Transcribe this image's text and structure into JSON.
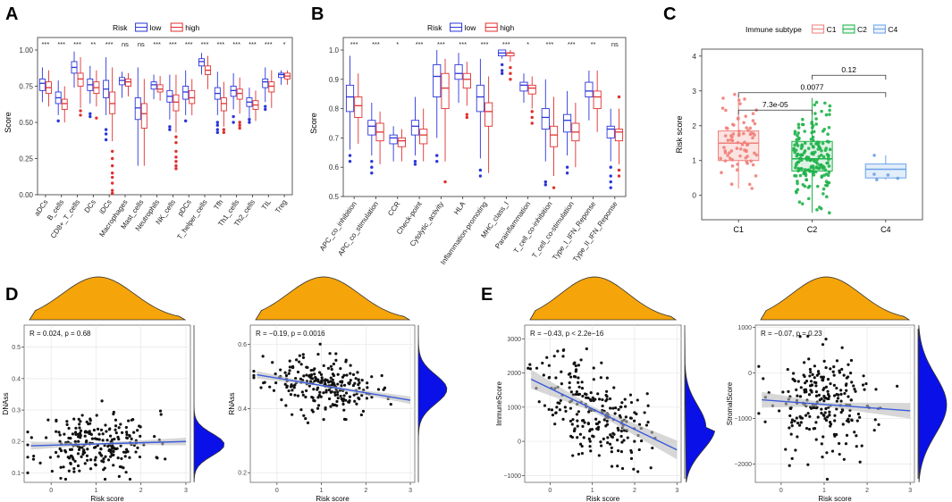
{
  "colors": {
    "low": "#2b35d9",
    "high": "#e0302e",
    "c1": "#f07f7a",
    "c2": "#1fb34a",
    "c4": "#6aa2e6",
    "density": "#f5a40a",
    "density_right": "#0a10e8",
    "fit_line": "#3b5bdb",
    "band": "#bdbdbd"
  },
  "chart_data": [
    {
      "panel": "A",
      "type": "box",
      "legend_title": "Risk",
      "legend": [
        "low",
        "high"
      ],
      "ylabel": "Score",
      "ylim": [
        0,
        1.0
      ],
      "yticks": [
        "0.00",
        "0.25",
        "0.50",
        "0.75",
        "1.00"
      ],
      "categories": [
        "aDCs",
        "B_cells",
        "CD8+_T_cells",
        "DCs",
        "iDCs",
        "Macrophages",
        "Mast_cells",
        "Neutrophils",
        "NK_cells",
        "pDCs",
        "T_helper_cells",
        "Tfh",
        "Th1_cells",
        "Th2_cells",
        "TIL",
        "Treg"
      ],
      "significance": [
        "***",
        "***",
        "***",
        "**",
        "***",
        "ns",
        "ns",
        "***",
        "***",
        "***",
        "***",
        "***",
        "***",
        "***",
        "***",
        "*"
      ],
      "series": [
        {
          "name": "low",
          "stats": [
            [
              0.64,
              0.72,
              0.77,
              0.8,
              0.88
            ],
            [
              0.55,
              0.63,
              0.67,
              0.71,
              0.79
            ],
            [
              0.74,
              0.84,
              0.88,
              0.92,
              0.99
            ],
            [
              0.63,
              0.72,
              0.76,
              0.8,
              0.89
            ],
            [
              0.55,
              0.67,
              0.73,
              0.79,
              0.95
            ],
            [
              0.67,
              0.76,
              0.79,
              0.81,
              0.85
            ],
            [
              0.2,
              0.52,
              0.6,
              0.67,
              0.88
            ],
            [
              0.66,
              0.73,
              0.76,
              0.78,
              0.83
            ],
            [
              0.52,
              0.64,
              0.68,
              0.72,
              0.83
            ],
            [
              0.55,
              0.66,
              0.71,
              0.75,
              0.86
            ],
            [
              0.83,
              0.89,
              0.92,
              0.94,
              0.98
            ],
            [
              0.55,
              0.66,
              0.7,
              0.74,
              0.85
            ],
            [
              0.59,
              0.68,
              0.72,
              0.75,
              0.84
            ],
            [
              0.53,
              0.61,
              0.64,
              0.67,
              0.74
            ],
            [
              0.64,
              0.74,
              0.78,
              0.8,
              0.88
            ],
            [
              0.76,
              0.81,
              0.83,
              0.84,
              0.86
            ]
          ]
        },
        {
          "name": "high",
          "stats": [
            [
              0.61,
              0.7,
              0.74,
              0.78,
              0.86
            ],
            [
              0.5,
              0.59,
              0.63,
              0.66,
              0.75
            ],
            [
              0.6,
              0.75,
              0.8,
              0.84,
              0.95
            ],
            [
              0.61,
              0.7,
              0.74,
              0.78,
              0.86
            ],
            [
              0.37,
              0.56,
              0.63,
              0.71,
              0.88
            ],
            [
              0.68,
              0.75,
              0.78,
              0.8,
              0.84
            ],
            [
              0.2,
              0.46,
              0.56,
              0.63,
              0.8
            ],
            [
              0.65,
              0.71,
              0.73,
              0.76,
              0.82
            ],
            [
              0.43,
              0.58,
              0.64,
              0.69,
              0.83
            ],
            [
              0.55,
              0.63,
              0.67,
              0.72,
              0.8
            ],
            [
              0.73,
              0.83,
              0.86,
              0.89,
              0.96
            ],
            [
              0.47,
              0.58,
              0.63,
              0.67,
              0.78
            ],
            [
              0.56,
              0.66,
              0.7,
              0.73,
              0.81
            ],
            [
              0.51,
              0.59,
              0.62,
              0.65,
              0.72
            ],
            [
              0.6,
              0.71,
              0.75,
              0.78,
              0.86
            ],
            [
              0.76,
              0.8,
              0.82,
              0.84,
              0.86
            ]
          ]
        }
      ],
      "outliers": [
        {
          "cat": 1,
          "series": "low",
          "values": [
            0.51
          ]
        },
        {
          "cat": 2,
          "series": "high",
          "values": [
            0.58,
            0.55
          ]
        },
        {
          "cat": 3,
          "series": "low",
          "values": [
            0.54,
            0.56
          ]
        },
        {
          "cat": 3,
          "series": "high",
          "values": [
            0.53
          ]
        },
        {
          "cat": 4,
          "series": "low",
          "values": [
            0.45,
            0.42,
            0.38
          ]
        },
        {
          "cat": 4,
          "series": "high",
          "values": [
            0.3,
            0.25,
            0.2,
            0.15,
            0.12,
            0.08,
            0.03,
            0.01
          ]
        },
        {
          "cat": 8,
          "series": "low",
          "values": [
            0.47,
            0.45
          ]
        },
        {
          "cat": 8,
          "series": "high",
          "values": [
            0.4,
            0.36,
            0.3,
            0.26,
            0.23,
            0.2,
            0.18
          ]
        },
        {
          "cat": 9,
          "series": "low",
          "values": [
            0.51
          ]
        },
        {
          "cat": 11,
          "series": "low",
          "values": [
            0.5,
            0.48,
            0.45,
            0.43
          ]
        },
        {
          "cat": 11,
          "series": "high",
          "values": [
            0.45,
            0.43
          ]
        },
        {
          "cat": 12,
          "series": "low",
          "values": [
            0.54,
            0.5
          ]
        },
        {
          "cat": 12,
          "series": "high",
          "values": [
            0.5,
            0.48,
            0.46
          ]
        },
        {
          "cat": 13,
          "series": "low",
          "values": [
            0.52,
            0.5
          ]
        },
        {
          "cat": 14,
          "series": "low",
          "values": [
            0.59,
            0.61
          ]
        }
      ]
    },
    {
      "panel": "B",
      "type": "box",
      "legend_title": "Risk",
      "legend": [
        "low",
        "high"
      ],
      "ylabel": "Score",
      "ylim": [
        0.5,
        1.0
      ],
      "yticks": [
        "0.5",
        "0.6",
        "0.7",
        "0.8",
        "0.9",
        "1.0"
      ],
      "categories": [
        "APC_co_inhibition",
        "APC_co_stimulation",
        "CCR",
        "Check-point",
        "Cytolytic_activity",
        "HLA",
        "Inflammation-promoting",
        "MHC_class_I",
        "Parainflammation",
        "T_cell_co-inhibition",
        "T_cell_co-stimulation",
        "Type_I_IFN_Reponse",
        "Type_II_IFN_Reponse"
      ],
      "significance": [
        "***",
        "***",
        "*",
        "***",
        "***",
        "***",
        "***",
        "***",
        "*",
        "***",
        "***",
        "**",
        "ns"
      ],
      "series": [
        {
          "name": "low",
          "stats": [
            [
              0.66,
              0.79,
              0.84,
              0.88,
              0.98
            ],
            [
              0.64,
              0.71,
              0.74,
              0.76,
              0.82
            ],
            [
              0.62,
              0.68,
              0.7,
              0.71,
              0.74
            ],
            [
              0.64,
              0.71,
              0.74,
              0.76,
              0.84
            ],
            [
              0.7,
              0.84,
              0.91,
              0.95,
              1.0
            ],
            [
              0.82,
              0.9,
              0.92,
              0.95,
              0.99
            ],
            [
              0.63,
              0.79,
              0.84,
              0.88,
              0.97
            ],
            [
              0.97,
              0.98,
              0.99,
              1.0,
              1.0
            ],
            [
              0.82,
              0.86,
              0.88,
              0.89,
              0.92
            ],
            [
              0.62,
              0.73,
              0.77,
              0.8,
              0.9
            ],
            [
              0.64,
              0.72,
              0.76,
              0.78,
              0.86
            ],
            [
              0.76,
              0.84,
              0.86,
              0.89,
              0.93
            ],
            [
              0.62,
              0.7,
              0.73,
              0.74,
              0.8
            ]
          ]
        },
        {
          "name": "high",
          "stats": [
            [
              0.68,
              0.77,
              0.81,
              0.84,
              0.92
            ],
            [
              0.61,
              0.69,
              0.72,
              0.75,
              0.79
            ],
            [
              0.62,
              0.67,
              0.69,
              0.7,
              0.73
            ],
            [
              0.62,
              0.68,
              0.71,
              0.73,
              0.8
            ],
            [
              0.62,
              0.8,
              0.87,
              0.92,
              0.97
            ],
            [
              0.81,
              0.87,
              0.9,
              0.92,
              0.96
            ],
            [
              0.58,
              0.74,
              0.79,
              0.82,
              0.91
            ],
            [
              0.96,
              0.98,
              0.99,
              0.99,
              1.0
            ],
            [
              0.8,
              0.85,
              0.87,
              0.88,
              0.91
            ],
            [
              0.57,
              0.67,
              0.71,
              0.74,
              0.84
            ],
            [
              0.6,
              0.69,
              0.72,
              0.75,
              0.82
            ],
            [
              0.72,
              0.8,
              0.84,
              0.86,
              0.93
            ],
            [
              0.61,
              0.69,
              0.72,
              0.73,
              0.8
            ]
          ]
        }
      ],
      "outliers": [
        {
          "cat": 0,
          "series": "low",
          "values": [
            0.62,
            0.64
          ]
        },
        {
          "cat": 1,
          "series": "low",
          "values": [
            0.62,
            0.6,
            0.58
          ]
        },
        {
          "cat": 3,
          "series": "low",
          "values": [
            0.61,
            0.62
          ]
        },
        {
          "cat": 4,
          "series": "low",
          "values": [
            0.64,
            0.62
          ]
        },
        {
          "cat": 4,
          "series": "high",
          "values": [
            0.55
          ]
        },
        {
          "cat": 5,
          "series": "high",
          "values": [
            0.78,
            0.77
          ]
        },
        {
          "cat": 6,
          "series": "low",
          "values": [
            0.59,
            0.57
          ]
        },
        {
          "cat": 7,
          "series": "low",
          "values": [
            0.95,
            0.93,
            0.92
          ]
        },
        {
          "cat": 7,
          "series": "high",
          "values": [
            0.94,
            0.92,
            0.9
          ]
        },
        {
          "cat": 8,
          "series": "high",
          "values": [
            0.79,
            0.77,
            0.75
          ]
        },
        {
          "cat": 9,
          "series": "low",
          "values": [
            0.54,
            0.55
          ]
        },
        {
          "cat": 9,
          "series": "high",
          "values": [
            0.53
          ]
        },
        {
          "cat": 10,
          "series": "low",
          "values": [
            0.6,
            0.58
          ]
        },
        {
          "cat": 12,
          "series": "low",
          "values": [
            0.6,
            0.57,
            0.55,
            0.53
          ]
        },
        {
          "cat": 12,
          "series": "high",
          "values": [
            0.84,
            0.59,
            0.57
          ]
        }
      ]
    },
    {
      "panel": "C",
      "type": "box",
      "legend_title": "Immune subtype",
      "legend": [
        "C1",
        "C2",
        "C4"
      ],
      "ylabel": "Risk score",
      "ylim": [
        -0.7,
        4.2
      ],
      "yticks": [
        "0",
        "1",
        "2",
        "3",
        "4"
      ],
      "categories": [
        "C1",
        "C2",
        "C4"
      ],
      "stats": [
        [
          0.2,
          1.0,
          1.5,
          1.85,
          2.9
        ],
        [
          -0.5,
          0.7,
          1.05,
          1.55,
          2.8
        ],
        [
          0.45,
          0.5,
          0.75,
          0.9,
          1.15
        ]
      ],
      "points": [
        75,
        180,
        5
      ],
      "comparisons": [
        {
          "pair": [
            "C1",
            "C2"
          ],
          "label": "7.3e-05"
        },
        {
          "pair": [
            "C1",
            "C4"
          ],
          "label": "0.0077"
        },
        {
          "pair": [
            "C2",
            "C4"
          ],
          "label": "0.12"
        }
      ]
    },
    {
      "panel": "D",
      "type": "scatter",
      "xlabel": "Risk score",
      "ylabel": "DNAss",
      "xlim": [
        -0.6,
        3.1
      ],
      "ylim": [
        0.07,
        0.57
      ],
      "xticks": [
        "0",
        "1",
        "2",
        "3"
      ],
      "yticks": [
        "0.1",
        "0.2",
        "0.3",
        "0.4",
        "0.5"
      ],
      "annotation": "R = 0.024, p = 0.68",
      "fit": {
        "intercept": 0.188,
        "slope": 0.004
      }
    },
    {
      "panel": "D2",
      "type": "scatter",
      "xlabel": "Risk score",
      "ylabel": "RNAss",
      "xlim": [
        -0.6,
        3.1
      ],
      "ylim": [
        0.17,
        0.66
      ],
      "xticks": [
        "0",
        "1",
        "2",
        "3"
      ],
      "yticks": [
        "0.2",
        "0.4",
        "0.6"
      ],
      "annotation": "R = −0.19, p = 0.0016",
      "fit": {
        "intercept": 0.495,
        "slope": -0.023
      }
    },
    {
      "panel": "E",
      "type": "scatter",
      "xlabel": "Risk score",
      "ylabel": "ImmuneScore",
      "xlim": [
        -0.6,
        3.1
      ],
      "ylim": [
        -1200,
        3400
      ],
      "xticks": [
        "0",
        "1",
        "2",
        "3"
      ],
      "yticks": [
        "−1000",
        "0",
        "1000",
        "2000",
        "3000"
      ],
      "annotation": "R = −0.43, p < 2.2e−16",
      "fit": {
        "intercept": 1550,
        "slope": -600
      }
    },
    {
      "panel": "E2",
      "type": "scatter",
      "xlabel": "Risk score",
      "ylabel": "StromalScore",
      "xlim": [
        -0.6,
        3.1
      ],
      "ylim": [
        -2400,
        1050
      ],
      "xticks": [
        "0",
        "1",
        "2",
        "3"
      ],
      "yticks": [
        "−2000",
        "−1000",
        "0",
        "1000"
      ],
      "annotation": "R = −0.07, p = 0.23",
      "fit": {
        "intercept": -620,
        "slope": -70
      }
    }
  ],
  "panel_labels": [
    "A",
    "B",
    "C",
    "D",
    "E"
  ]
}
